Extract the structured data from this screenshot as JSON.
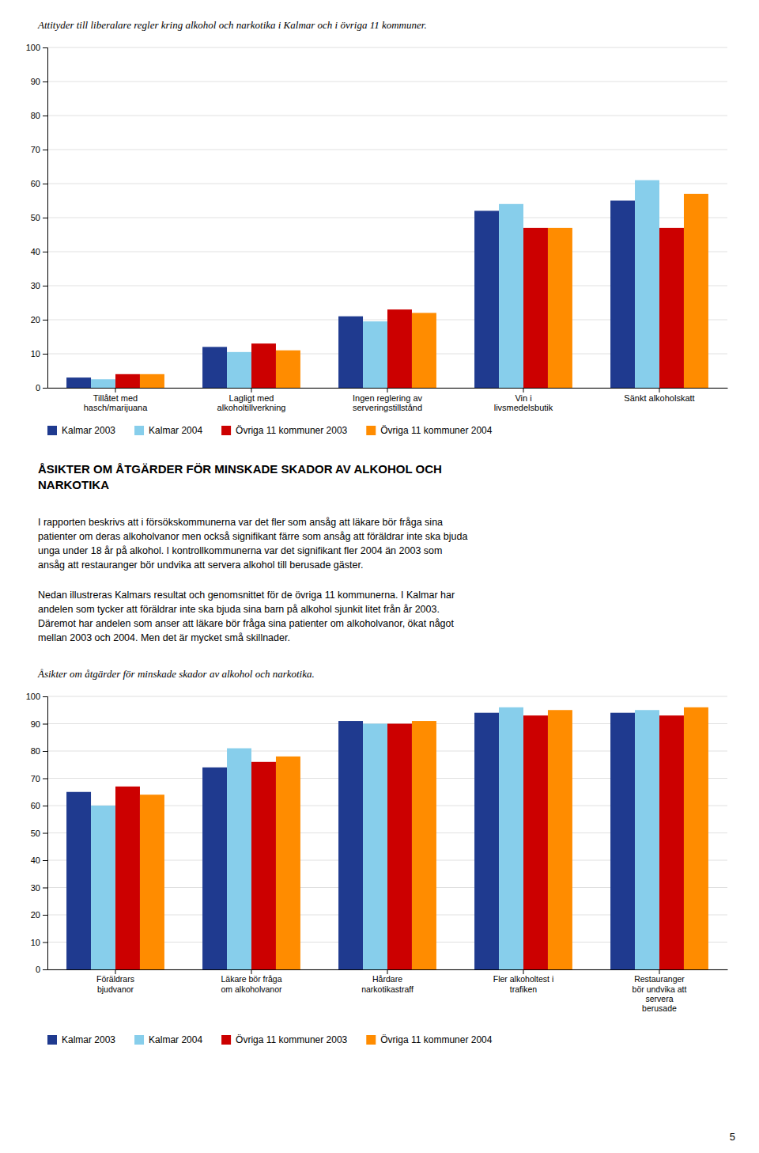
{
  "chart_data": [
    {
      "type": "bar",
      "title": "Attityder till liberalare regler kring alkohol och narkotika i Kalmar och i övriga 11 kommuner.",
      "categories": [
        "Tillåtet med\nhasch/marijuana",
        "Lagligt med\nalkoholtillverkning",
        "Ingen reglering av\nserveringstillstånd",
        "Vin i\nlivsmedelsbutik",
        "Sänkt alkoholskatt"
      ],
      "series": [
        {
          "name": "Kalmar 2003",
          "color": "#1F3A8F",
          "values": [
            3,
            12,
            21,
            52,
            55
          ]
        },
        {
          "name": "Kalmar 2004",
          "color": "#87CEEB",
          "values": [
            2.5,
            10.5,
            19.5,
            54,
            61
          ]
        },
        {
          "name": "Övriga 11 kommuner 2003",
          "color": "#CC0000",
          "values": [
            4,
            13,
            23,
            47,
            47
          ]
        },
        {
          "name": "Övriga 11 kommuner 2004",
          "color": "#FF8C00",
          "values": [
            4,
            11,
            22,
            47,
            57
          ]
        }
      ],
      "ylim": [
        0,
        100
      ],
      "yticks": [
        0,
        10,
        20,
        30,
        40,
        50,
        60,
        70,
        80,
        90,
        100
      ],
      "grid": true,
      "legend": "bottom"
    },
    {
      "type": "bar",
      "title": "Åsikter om åtgärder för minskade skador av alkohol och narkotika.",
      "categories": [
        "Föräldrars\nbjudvanor",
        "Läkare bör fråga\nom alkoholvanor",
        "Hårdare\nnarkotikastraff",
        "Fler alkoholtest i\ntrafiken",
        "Restauranger\nbör undvika att\nservera\nberusade"
      ],
      "series": [
        {
          "name": "Kalmar 2003",
          "color": "#1F3A8F",
          "values": [
            65,
            74,
            91,
            94,
            94
          ]
        },
        {
          "name": "Kalmar 2004",
          "color": "#87CEEB",
          "values": [
            60,
            81,
            90,
            96,
            95
          ]
        },
        {
          "name": "Övriga 11 kommuner 2003",
          "color": "#CC0000",
          "values": [
            67,
            76,
            90,
            93,
            93
          ]
        },
        {
          "name": "Övriga 11 kommuner 2004",
          "color": "#FF8C00",
          "values": [
            64,
            78,
            91,
            95,
            96
          ]
        }
      ],
      "ylim": [
        0,
        100
      ],
      "yticks": [
        0,
        10,
        20,
        30,
        40,
        50,
        60,
        70,
        80,
        90,
        100
      ],
      "grid": true,
      "legend": "bottom"
    }
  ],
  "heading": "ÅSIKTER OM ÅTGÄRDER FÖR MINSKADE SKADOR AV ALKOHOL OCH\nNARKOTIKA",
  "body_text": "I rapporten beskrivs att i försökskommunerna var det fler som ansåg att läkare bör fråga sina\npatienter om deras alkoholvanor men också signifikant färre som ansåg att föräldrar inte ska bjuda\nunga under 18 år på alkohol. I kontrollkommunerna var det signifikant fler 2004 än 2003 som\nansåg att restauranger bör undvika att servera alkohol till berusade gäster.",
  "subheading": "Nedan illustreras Kalmars resultat och genomsnittet för de övriga 11 kommunerna. I Kalmar har\nandelen som tycker att föräldrar inte ska bjuda sina barn på alkohol sjunkit litet från år 2003.\nDäremot har andelen som anser att läkare bör fråga sina patienter om alkoholvanor, ökat något\nmellan 2003 och 2004. Men det är mycket små skillnader.",
  "page_number": "5"
}
